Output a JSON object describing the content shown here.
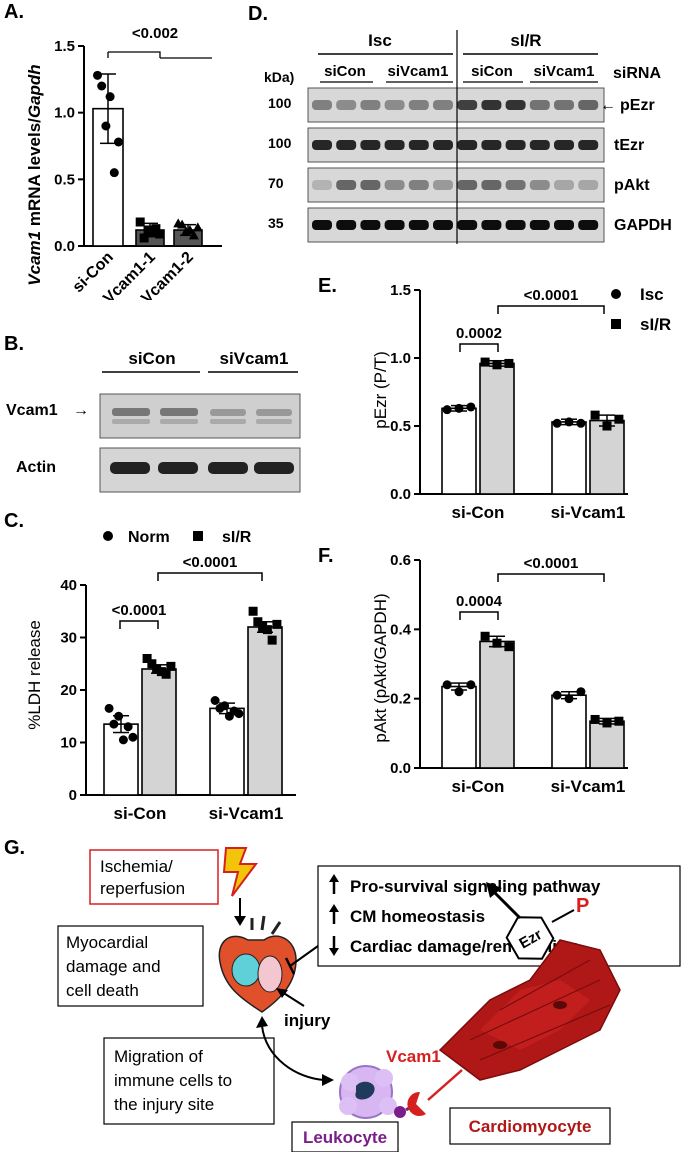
{
  "panels": {
    "A": {
      "label": "A.",
      "ylabel": "Vcam1 mRNA levels/Gapdh",
      "ylabel_italic_1": "Vcam1",
      "ylabel_mid": " mRNA levels/",
      "ylabel_italic_2": "Gapdh",
      "pvalue": "<0.002"
    },
    "B": {
      "label": "B.",
      "groups": [
        "siCon",
        "siVcam1"
      ],
      "rows": [
        "Vcam1",
        "Actin"
      ]
    },
    "C": {
      "label": "C.",
      "legend": [
        "Norm",
        "sI/R"
      ],
      "ylabel": "%LDH release",
      "pvalues": [
        "<0.0001",
        "<0.0001"
      ]
    },
    "D": {
      "label": "D.",
      "conditions": [
        "Isc",
        "sI/R"
      ],
      "sirna": [
        "siCon",
        "siVcam1",
        "siCon",
        "siVcam1"
      ],
      "sirna_title": "siRNA",
      "kda_title": "kDa)",
      "rows": [
        {
          "kda": "100",
          "name": "pEzr",
          "arrow": "←"
        },
        {
          "kda": "100",
          "name": "tEzr",
          "arrow": ""
        },
        {
          "kda": "70",
          "name": "pAkt",
          "arrow": ""
        },
        {
          "kda": "35",
          "name": "GAPDH",
          "arrow": ""
        }
      ]
    },
    "E": {
      "label": "E.",
      "legend": [
        "Isc",
        "sI/R"
      ],
      "ylabel": "pEzr (P/T)",
      "pvalues": [
        "0.0002",
        "<0.0001"
      ]
    },
    "F": {
      "label": "F.",
      "ylabel": "pAkt (pAkt/GAPDH)",
      "pvalues": [
        "0.0004",
        "<0.0001"
      ]
    },
    "G": {
      "label": "G.",
      "ischemia": [
        "Ischemia/",
        "reperfusion"
      ],
      "damage": [
        "Myocardial",
        "damage and",
        "cell death"
      ],
      "effects": [
        {
          "arrow": "up",
          "text": "Pro-survival signaling pathway"
        },
        {
          "arrow": "up",
          "text": "CM homeostasis"
        },
        {
          "arrow": "down",
          "text": "Cardiac damage/remodeling"
        }
      ],
      "injury": "injury",
      "migration": [
        "Migration of",
        "immune cells to",
        "the injury site"
      ],
      "vcam1": "Vcam1",
      "ezr": "Ezr",
      "p": "P",
      "leukocyte": "Leukocyte",
      "cardiomyocyte": "Cardiomyocyte",
      "colors": {
        "red": "#d62020",
        "purple": "#7a1f8a",
        "heart": "#e0502a",
        "cm": "#b01818"
      }
    }
  },
  "chart_data": [
    {
      "panel": "A",
      "type": "bar",
      "categories": [
        "si-Con",
        "si-Vcam1-1",
        "si-Vcam1-2"
      ],
      "values": [
        1.03,
        0.12,
        0.12
      ],
      "errors": [
        0.26,
        0.05,
        0.04
      ],
      "points": [
        [
          1.28,
          1.2,
          0.9,
          1.12,
          0.55,
          0.78
        ],
        [
          0.18,
          0.06,
          0.12,
          0.1,
          0.13,
          0.09
        ],
        [
          0.17,
          0.16,
          0.11,
          0.12,
          0.08,
          0.14
        ]
      ],
      "ylabel": "Vcam1 mRNA levels/Gapdh",
      "ylim": [
        0,
        1.5
      ],
      "yticks": [
        0.0,
        0.5,
        1.0,
        1.5
      ]
    },
    {
      "panel": "C",
      "type": "bar",
      "categories": [
        "si-Con",
        "si-Vcam1"
      ],
      "series": [
        {
          "name": "Norm",
          "values": [
            13.5,
            16.5
          ],
          "errors": [
            1.6,
            1.0
          ],
          "points": [
            [
              16.5,
              13.5,
              15.0,
              10.5,
              13.0,
              11.0
            ],
            [
              18.0,
              16.5,
              17.0,
              15.0,
              16.0,
              15.5
            ]
          ]
        },
        {
          "name": "sI/R",
          "values": [
            24.0,
            32.0
          ],
          "errors": [
            0.8,
            1.0
          ],
          "points": [
            [
              26.0,
              25.0,
              24.0,
              23.5,
              23.0,
              24.5
            ],
            [
              35.0,
              33.0,
              32.0,
              31.5,
              29.5,
              32.5
            ]
          ]
        }
      ],
      "ylabel": "%LDH release",
      "ylim": [
        0,
        40
      ],
      "yticks": [
        0,
        10,
        20,
        30,
        40
      ]
    },
    {
      "panel": "E",
      "type": "bar",
      "categories": [
        "si-Con",
        "si-Vcam1"
      ],
      "series": [
        {
          "name": "Isc",
          "values": [
            0.63,
            0.53
          ],
          "errors": [
            0.02,
            0.02
          ],
          "points": [
            [
              0.62,
              0.63,
              0.64
            ],
            [
              0.52,
              0.53,
              0.52
            ]
          ]
        },
        {
          "name": "sI/R",
          "values": [
            0.96,
            0.54
          ],
          "errors": [
            0.02,
            0.04
          ],
          "points": [
            [
              0.97,
              0.95,
              0.96
            ],
            [
              0.58,
              0.5,
              0.55
            ]
          ]
        }
      ],
      "ylabel": "pEzr (P/T)",
      "ylim": [
        0,
        1.5
      ],
      "yticks": [
        0.0,
        0.5,
        1.0,
        1.5
      ]
    },
    {
      "panel": "F",
      "type": "bar",
      "categories": [
        "si-Con",
        "si-Vcam1"
      ],
      "series": [
        {
          "name": "Isc",
          "values": [
            0.235,
            0.21
          ],
          "errors": [
            0.01,
            0.01
          ],
          "points": [
            [
              0.24,
              0.22,
              0.24
            ],
            [
              0.21,
              0.2,
              0.22
            ]
          ]
        },
        {
          "name": "sI/R",
          "values": [
            0.365,
            0.135
          ],
          "errors": [
            0.015,
            0.008
          ],
          "points": [
            [
              0.38,
              0.36,
              0.35
            ],
            [
              0.14,
              0.13,
              0.135
            ]
          ]
        }
      ],
      "ylabel": "pAkt (pAkt/GAPDH)",
      "ylim": [
        0,
        0.6
      ],
      "yticks": [
        0.0,
        0.2,
        0.4,
        0.6
      ]
    }
  ]
}
